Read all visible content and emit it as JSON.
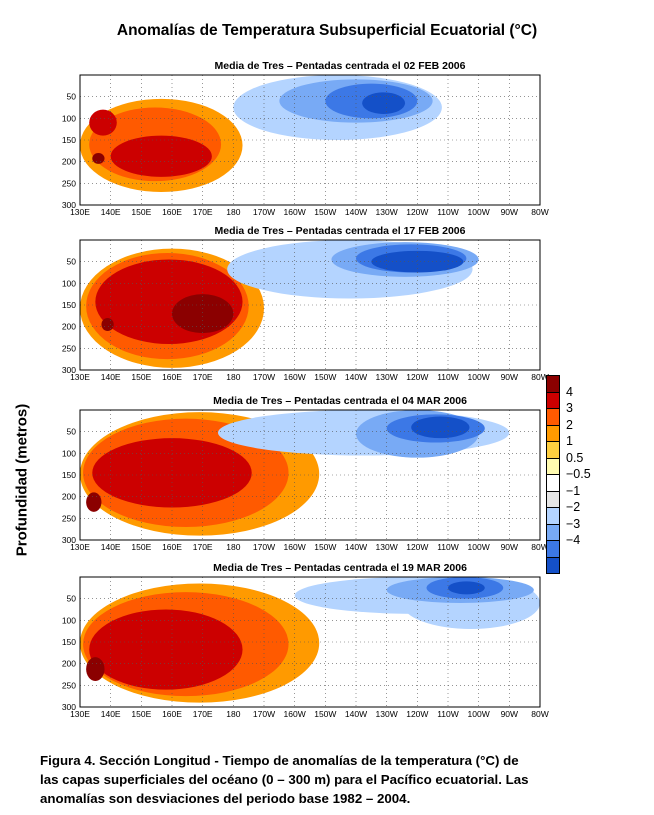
{
  "figure": {
    "title": "Anomalías de Temperatura Subsuperficial Ecuatorial (°C)",
    "ylabel": "Profundidad (metros)",
    "caption_lines": [
      "Figura 4.  Sección Longitud  - Tiempo  de anomalías de la temperatura (°C) de",
      "las capas superficiales del océano (0 – 300 m) para el Pacífico ecuatorial.  Las",
      "anomalías son desviaciones del periodo base 1982 – 2004."
    ]
  },
  "legend": {
    "labels": [
      "4",
      "3",
      "2",
      "1",
      "0.5",
      "−0.5",
      "−1",
      "−2",
      "−3",
      "−4"
    ],
    "colors": [
      "#8b0000",
      "#cc0000",
      "#ff5a00",
      "#ff9a00",
      "#ffd040",
      "#fffbb0",
      "#ffffff",
      "#e6e6e6",
      "#b4d4ff",
      "#78aaf5",
      "#3c78e6",
      "#1450c8"
    ]
  },
  "chart_data": [
    {
      "type": "heatmap",
      "title": "Media de Tres – Pentadas  centrada el 02 FEB 2006",
      "x_tick_labels": [
        "130E",
        "140E",
        "150E",
        "160E",
        "170E",
        "180",
        "170W",
        "160W",
        "150W",
        "140W",
        "130W",
        "120W",
        "110W",
        "100W",
        "90W",
        "80W"
      ],
      "y_tick_labels": [
        "50",
        "100",
        "150",
        "200",
        "250",
        "300"
      ],
      "xlim": [
        130,
        280
      ],
      "ylim": [
        300,
        0
      ],
      "blobs": [
        {
          "value": 1,
          "lon": [
            130,
            183
          ],
          "depth": [
            55,
            270
          ]
        },
        {
          "value": 2,
          "lon": [
            133,
            176
          ],
          "depth": [
            75,
            245
          ]
        },
        {
          "value": 3,
          "lon": [
            133,
            142
          ],
          "depth": [
            80,
            140
          ]
        },
        {
          "value": 3,
          "lon": [
            140,
            173
          ],
          "depth": [
            140,
            235
          ]
        },
        {
          "value": 4,
          "lon": [
            134,
            138
          ],
          "depth": [
            180,
            205
          ]
        },
        {
          "value": -1,
          "lon": [
            180,
            248
          ],
          "depth": [
            0,
            150
          ]
        },
        {
          "value": -2,
          "lon": [
            195,
            245
          ],
          "depth": [
            10,
            110
          ]
        },
        {
          "value": -3,
          "lon": [
            210,
            240
          ],
          "depth": [
            20,
            100
          ]
        },
        {
          "value": -4,
          "lon": [
            222,
            236
          ],
          "depth": [
            40,
            90
          ]
        }
      ]
    },
    {
      "type": "heatmap",
      "title": "Media de Tres – Pentadas  centrada el 17 FEB 2006",
      "x_tick_labels": [
        "130E",
        "140E",
        "150E",
        "160E",
        "170E",
        "180",
        "170W",
        "160W",
        "150W",
        "140W",
        "130W",
        "120W",
        "110W",
        "100W",
        "90W",
        "80W"
      ],
      "y_tick_labels": [
        "50",
        "100",
        "150",
        "200",
        "250",
        "300"
      ],
      "xlim": [
        130,
        280
      ],
      "ylim": [
        300,
        0
      ],
      "blobs": [
        {
          "value": 1,
          "lon": [
            130,
            190
          ],
          "depth": [
            20,
            295
          ]
        },
        {
          "value": 2,
          "lon": [
            132,
            185
          ],
          "depth": [
            30,
            275
          ]
        },
        {
          "value": 3,
          "lon": [
            135,
            183
          ],
          "depth": [
            45,
            240
          ]
        },
        {
          "value": 4,
          "lon": [
            160,
            180
          ],
          "depth": [
            125,
            215
          ]
        },
        {
          "value": 4,
          "lon": [
            137,
            141
          ],
          "depth": [
            180,
            210
          ]
        },
        {
          "value": -1,
          "lon": [
            178,
            258
          ],
          "depth": [
            0,
            135
          ]
        },
        {
          "value": -2,
          "lon": [
            212,
            260
          ],
          "depth": [
            5,
            85
          ]
        },
        {
          "value": -3,
          "lon": [
            220,
            256
          ],
          "depth": [
            10,
            75
          ]
        },
        {
          "value": -4,
          "lon": [
            225,
            255
          ],
          "depth": [
            25,
            75
          ]
        }
      ]
    },
    {
      "type": "heatmap",
      "title": "Media de Tres – Pentadas  centrada el 04 MAR 2006",
      "x_tick_labels": [
        "130E",
        "140E",
        "150E",
        "160E",
        "170E",
        "180",
        "170W",
        "160W",
        "150W",
        "140W",
        "130W",
        "120W",
        "110W",
        "100W",
        "90W",
        "80W"
      ],
      "y_tick_labels": [
        "50",
        "100",
        "150",
        "200",
        "250",
        "300"
      ],
      "xlim": [
        130,
        280
      ],
      "ylim": [
        300,
        0
      ],
      "blobs": [
        {
          "value": 1,
          "lon": [
            130,
            208
          ],
          "depth": [
            5,
            290
          ]
        },
        {
          "value": 2,
          "lon": [
            131,
            198
          ],
          "depth": [
            20,
            270
          ]
        },
        {
          "value": 3,
          "lon": [
            134,
            186
          ],
          "depth": [
            65,
            225
          ]
        },
        {
          "value": 4,
          "lon": [
            132,
            137
          ],
          "depth": [
            190,
            235
          ]
        },
        {
          "value": -1,
          "lon": [
            175,
            270
          ],
          "depth": [
            0,
            105
          ]
        },
        {
          "value": -2,
          "lon": [
            220,
            260
          ],
          "depth": [
            0,
            110
          ]
        },
        {
          "value": -3,
          "lon": [
            230,
            262
          ],
          "depth": [
            10,
            75
          ]
        },
        {
          "value": -4,
          "lon": [
            238,
            257
          ],
          "depth": [
            15,
            65
          ]
        }
      ]
    },
    {
      "type": "heatmap",
      "title": "Media de Tres – Pentadas  centrada el 19 MAR 2006",
      "x_tick_labels": [
        "130E",
        "140E",
        "150E",
        "160E",
        "170E",
        "180",
        "170W",
        "160W",
        "150W",
        "140W",
        "130W",
        "120W",
        "110W",
        "100W",
        "90W",
        "80W"
      ],
      "y_tick_labels": [
        "50",
        "100",
        "150",
        "200",
        "250",
        "300"
      ],
      "xlim": [
        130,
        280
      ],
      "ylim": [
        300,
        0
      ],
      "blobs": [
        {
          "value": 1,
          "lon": [
            130,
            208
          ],
          "depth": [
            15,
            290
          ]
        },
        {
          "value": 2,
          "lon": [
            131,
            198
          ],
          "depth": [
            35,
            275
          ]
        },
        {
          "value": 3,
          "lon": [
            133,
            183
          ],
          "depth": [
            75,
            260
          ]
        },
        {
          "value": 4,
          "lon": [
            132,
            138
          ],
          "depth": [
            185,
            240
          ]
        },
        {
          "value": -1,
          "lon": [
            200,
            278
          ],
          "depth": [
            0,
            85
          ]
        },
        {
          "value": -1,
          "lon": [
            235,
            280
          ],
          "depth": [
            0,
            120
          ]
        },
        {
          "value": -2,
          "lon": [
            230,
            278
          ],
          "depth": [
            0,
            60
          ]
        },
        {
          "value": -3,
          "lon": [
            243,
            268
          ],
          "depth": [
            0,
            50
          ]
        },
        {
          "value": -4,
          "lon": [
            250,
            262
          ],
          "depth": [
            10,
            40
          ]
        }
      ]
    }
  ]
}
